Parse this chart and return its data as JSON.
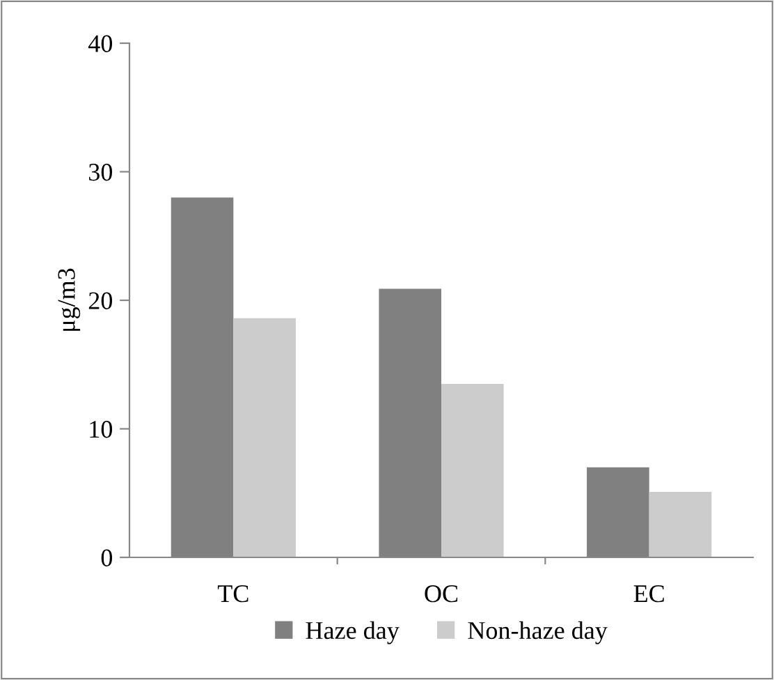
{
  "chart_data": {
    "type": "bar",
    "ylabel": "μg/m3",
    "categories": [
      "TC",
      "OC",
      "EC"
    ],
    "series": [
      {
        "name": "Haze day",
        "color": "#808080",
        "values": [
          28,
          20.9,
          7.0
        ]
      },
      {
        "name": "Non-haze day",
        "color": "#cccccc",
        "values": [
          18.6,
          13.5,
          5.1
        ]
      }
    ],
    "ylim": [
      0,
      40
    ],
    "yticks": [
      0,
      10,
      20,
      30,
      40
    ],
    "grid": false,
    "legend": "bottom"
  }
}
